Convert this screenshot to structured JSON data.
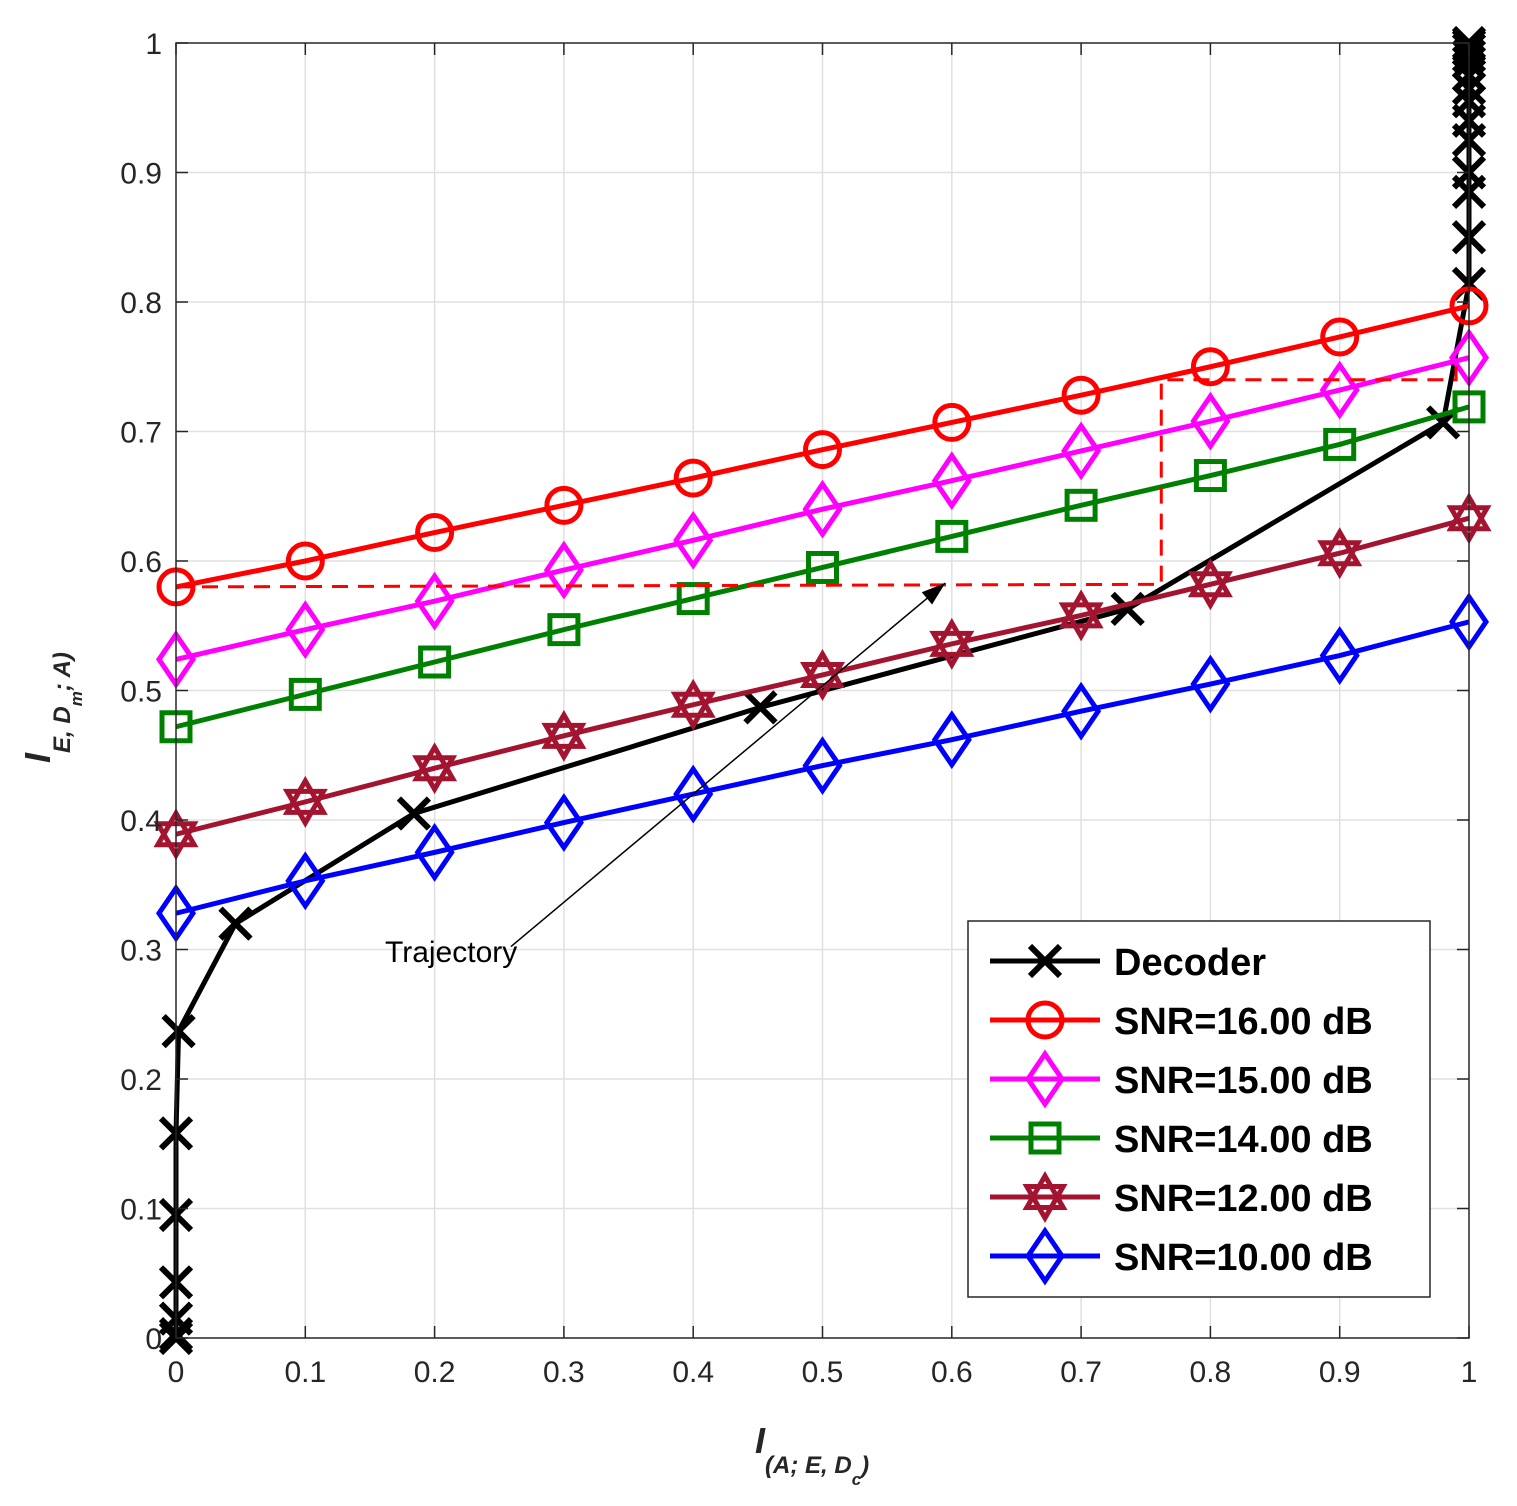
{
  "chart_data": {
    "type": "line",
    "title": "",
    "xlabel": {
      "main": "I",
      "sub": "(A; E, D",
      "subsub": "c",
      "close": ")"
    },
    "ylabel": {
      "main": "I",
      "sub": "E, D",
      "subsub": "m",
      "close": "; A)"
    },
    "xlim": [
      0,
      1
    ],
    "ylim": [
      0,
      1
    ],
    "xticks": [
      "0",
      "0.1",
      "0.2",
      "0.3",
      "0.4",
      "0.5",
      "0.6",
      "0.7",
      "0.8",
      "0.9",
      "1"
    ],
    "yticks": [
      "0",
      "0.1",
      "0.2",
      "0.3",
      "0.4",
      "0.5",
      "0.6",
      "0.7",
      "0.8",
      "0.9",
      "1"
    ],
    "grid": true,
    "legend_position": "bottom-right",
    "series": [
      {
        "name": "Decoder",
        "color": "#000000",
        "marker": "x",
        "x": [
          0,
          0,
          0,
          0,
          0,
          0,
          0.002,
          0.046,
          0.184,
          0.452,
          0.736,
          0.98,
          1,
          1,
          1,
          1,
          1,
          1,
          1,
          1,
          1,
          1,
          1,
          1,
          1,
          1
        ],
        "y": [
          0,
          0.003,
          0.015,
          0.043,
          0.095,
          0.158,
          0.237,
          0.32,
          0.405,
          0.487,
          0.563,
          0.707,
          0.814,
          0.85,
          0.885,
          0.9,
          0.925,
          0.94,
          0.955,
          0.965,
          0.975,
          0.985,
          0.99,
          0.995,
          0.998,
          1.0
        ]
      },
      {
        "name": "SNR=16.00 dB",
        "color": "#ff0000",
        "marker": "circle",
        "x": [
          0,
          0.1,
          0.2,
          0.3,
          0.4,
          0.5,
          0.6,
          0.7,
          0.8,
          0.9,
          1
        ],
        "y": [
          0.58,
          0.6,
          0.622,
          0.643,
          0.664,
          0.686,
          0.707,
          0.728,
          0.75,
          0.773,
          0.797
        ]
      },
      {
        "name": "SNR=15.00 dB",
        "color": "#ff00ff",
        "marker": "diamond",
        "x": [
          0,
          0.1,
          0.2,
          0.3,
          0.4,
          0.5,
          0.6,
          0.7,
          0.8,
          0.9,
          1
        ],
        "y": [
          0.524,
          0.547,
          0.569,
          0.593,
          0.616,
          0.64,
          0.662,
          0.685,
          0.708,
          0.732,
          0.757
        ]
      },
      {
        "name": "SNR=14.00 dB",
        "color": "#008000",
        "marker": "square",
        "x": [
          0,
          0.1,
          0.2,
          0.3,
          0.4,
          0.5,
          0.6,
          0.7,
          0.8,
          0.9,
          1
        ],
        "y": [
          0.472,
          0.497,
          0.522,
          0.547,
          0.571,
          0.595,
          0.619,
          0.643,
          0.666,
          0.69,
          0.719
        ]
      },
      {
        "name": "SNR=12.00 dB",
        "color": "#a2142f",
        "marker": "hexagram",
        "x": [
          0,
          0.1,
          0.2,
          0.3,
          0.4,
          0.5,
          0.6,
          0.7,
          0.8,
          0.9,
          1
        ],
        "y": [
          0.389,
          0.414,
          0.44,
          0.465,
          0.489,
          0.512,
          0.536,
          0.558,
          0.582,
          0.606,
          0.633
        ]
      },
      {
        "name": "SNR=10.00 dB",
        "color": "#0000ff",
        "marker": "diamond",
        "x": [
          0,
          0.1,
          0.2,
          0.3,
          0.4,
          0.5,
          0.6,
          0.7,
          0.8,
          0.9,
          1
        ],
        "y": [
          0.328,
          0.353,
          0.375,
          0.398,
          0.42,
          0.442,
          0.462,
          0.484,
          0.505,
          0.527,
          0.553
        ]
      }
    ],
    "trajectory": {
      "color": "#ff0000",
      "style": "dashed",
      "x": [
        0,
        0.762,
        0.762,
        0.99,
        0.99
      ],
      "y": [
        0.58,
        0.582,
        0.74,
        0.74,
        0.757
      ]
    },
    "annotations": [
      {
        "text": "Trajectory",
        "arrow_from": [
          0.29,
          0.31
        ],
        "arrow_to": [
          0.595,
          0.583
        ]
      }
    ]
  }
}
